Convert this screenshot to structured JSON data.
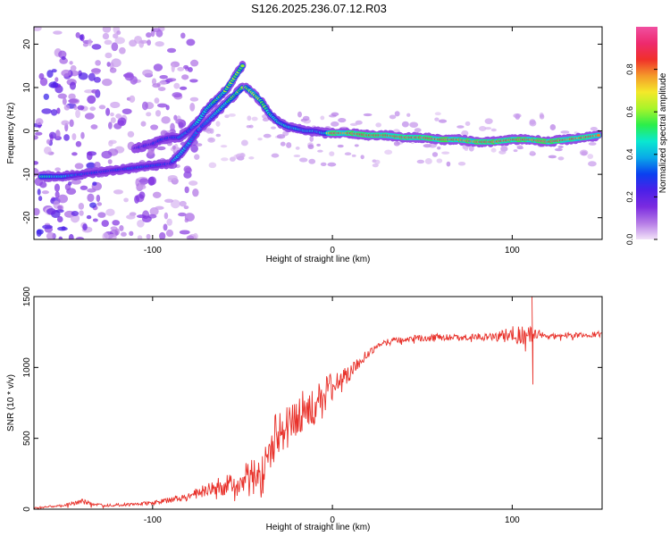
{
  "title": "S126.2025.236.07.12.R03",
  "chart_data": [
    {
      "type": "heatmap",
      "name": "spectrogram",
      "xlabel": "Height of straight line (km)",
      "ylabel": "Frequency (Hz)",
      "xlim": [
        -166,
        150
      ],
      "ylim": [
        -25,
        24
      ],
      "x_ticks": [
        -100,
        0,
        100
      ],
      "x_tick_labels": [
        "-100",
        "0",
        "100"
      ],
      "y_ticks": [
        -20,
        -10,
        0,
        10,
        20
      ],
      "y_tick_labels": [
        "-20",
        "-10",
        "0",
        "10",
        "20"
      ],
      "colorbar": {
        "label": "Normalized spectral amplitude",
        "range": [
          0,
          1
        ],
        "ticks": [
          0.0,
          0.2,
          0.4,
          0.6,
          0.8
        ],
        "tick_labels": [
          "0.0",
          "0.2",
          "0.4",
          "0.6",
          "0.8"
        ]
      },
      "ridges": [
        {
          "name": "lower-branch",
          "x": [
            -162,
            -150,
            -140,
            -130,
            -120,
            -110,
            -100,
            -90,
            -85,
            -80,
            -75,
            -70,
            -65,
            -60,
            -55,
            -50
          ],
          "y": [
            -10.5,
            -10.5,
            -10,
            -9.5,
            -9,
            -8.5,
            -8,
            -7.5,
            -5.5,
            -3,
            0,
            2,
            4,
            6,
            8,
            10
          ],
          "amplitude": [
            0.5,
            0.45,
            0.35,
            0.3,
            0.3,
            0.35,
            0.35,
            0.3,
            0.5,
            0.4,
            0.35,
            0.4,
            0.45,
            0.55,
            0.6,
            0.65
          ]
        },
        {
          "name": "upper-branch",
          "x": [
            -110,
            -100,
            -95,
            -90,
            -85,
            -80,
            -75,
            -70,
            -65,
            -60,
            -55,
            -50
          ],
          "y": [
            -4,
            -3,
            -2,
            -1.5,
            -1.5,
            0,
            2,
            5,
            7,
            9,
            12,
            15
          ],
          "amplitude": [
            0.25,
            0.3,
            0.3,
            0.3,
            0.35,
            0.35,
            0.45,
            0.5,
            0.55,
            0.6,
            0.65,
            0.65
          ]
        },
        {
          "name": "main-descending",
          "x": [
            -48,
            -45,
            -40,
            -35,
            -30,
            -25,
            -20,
            -15,
            -10,
            -5,
            0,
            5,
            10,
            20,
            30,
            40,
            50,
            60,
            70,
            80,
            90,
            100,
            110,
            120,
            130,
            140,
            148
          ],
          "y": [
            10,
            9,
            7,
            4,
            2,
            1,
            0.5,
            0,
            0,
            -0.5,
            -0.5,
            -0.5,
            -0.5,
            -1,
            -1,
            -1.5,
            -1.5,
            -2,
            -2,
            -2.5,
            -2.5,
            -2,
            -2,
            -2.5,
            -2,
            -1.5,
            -1
          ],
          "amplitude": [
            0.6,
            0.65,
            0.6,
            0.55,
            0.5,
            0.45,
            0.45,
            0.4,
            0.4,
            0.4,
            0.95,
            0.95,
            0.95,
            0.95,
            0.95,
            0.95,
            0.95,
            0.95,
            0.95,
            0.95,
            0.95,
            0.95,
            0.95,
            0.95,
            0.95,
            0.9,
            0.9
          ]
        }
      ]
    },
    {
      "type": "line",
      "name": "snr",
      "xlabel": "Height of straight line (km)",
      "ylabel": "SNR (10 * v/v)",
      "xlim": [
        -166,
        150
      ],
      "ylim": [
        0,
        1500
      ],
      "x_ticks": [
        -100,
        0,
        100
      ],
      "x_tick_labels": [
        "-100",
        "0",
        "100"
      ],
      "y_ticks": [
        0,
        500,
        1000,
        1500
      ],
      "y_tick_labels": [
        "0",
        "500",
        "1000",
        "1500"
      ],
      "color": "#e8312a",
      "x": [
        -166,
        -150,
        -140,
        -130,
        -120,
        -110,
        -100,
        -90,
        -80,
        -70,
        -60,
        -50,
        -45,
        -40,
        -35,
        -30,
        -25,
        -20,
        -15,
        -10,
        -5,
        0,
        5,
        10,
        15,
        20,
        25,
        30,
        35,
        40,
        45,
        50,
        60,
        70,
        80,
        90,
        100,
        105,
        110,
        112,
        115,
        120,
        130,
        140,
        150
      ],
      "y": [
        10,
        25,
        55,
        30,
        30,
        35,
        45,
        65,
        95,
        130,
        170,
        210,
        280,
        220,
        400,
        560,
        580,
        640,
        720,
        700,
        820,
        860,
        940,
        960,
        1040,
        1100,
        1150,
        1180,
        1200,
        1195,
        1210,
        1205,
        1215,
        1210,
        1215,
        1215,
        1230,
        1230,
        1240,
        1230,
        1240,
        1220,
        1225,
        1230,
        1235
      ],
      "noise": [
        5,
        8,
        20,
        10,
        10,
        12,
        15,
        20,
        30,
        50,
        70,
        90,
        100,
        110,
        160,
        180,
        160,
        150,
        140,
        130,
        120,
        110,
        80,
        60,
        40,
        30,
        20,
        20,
        20,
        20,
        20,
        20,
        25,
        20,
        25,
        30,
        60,
        70,
        80,
        40,
        25,
        20,
        20,
        20,
        20
      ],
      "spikes": [
        {
          "x": 111,
          "y": 1500
        },
        {
          "x": 111.5,
          "y": 880
        }
      ]
    }
  ],
  "colormap_stops": [
    "#f2e2f8",
    "#b57be6",
    "#7b2be0",
    "#4b20e8",
    "#0a40f0",
    "#0aa9e8",
    "#0ae8d0",
    "#2bee4a",
    "#a8f42a",
    "#f4e92a",
    "#f49a2a",
    "#f0302a",
    "#ee2a6e",
    "#f04fa0"
  ],
  "line_color": "#e8312a"
}
